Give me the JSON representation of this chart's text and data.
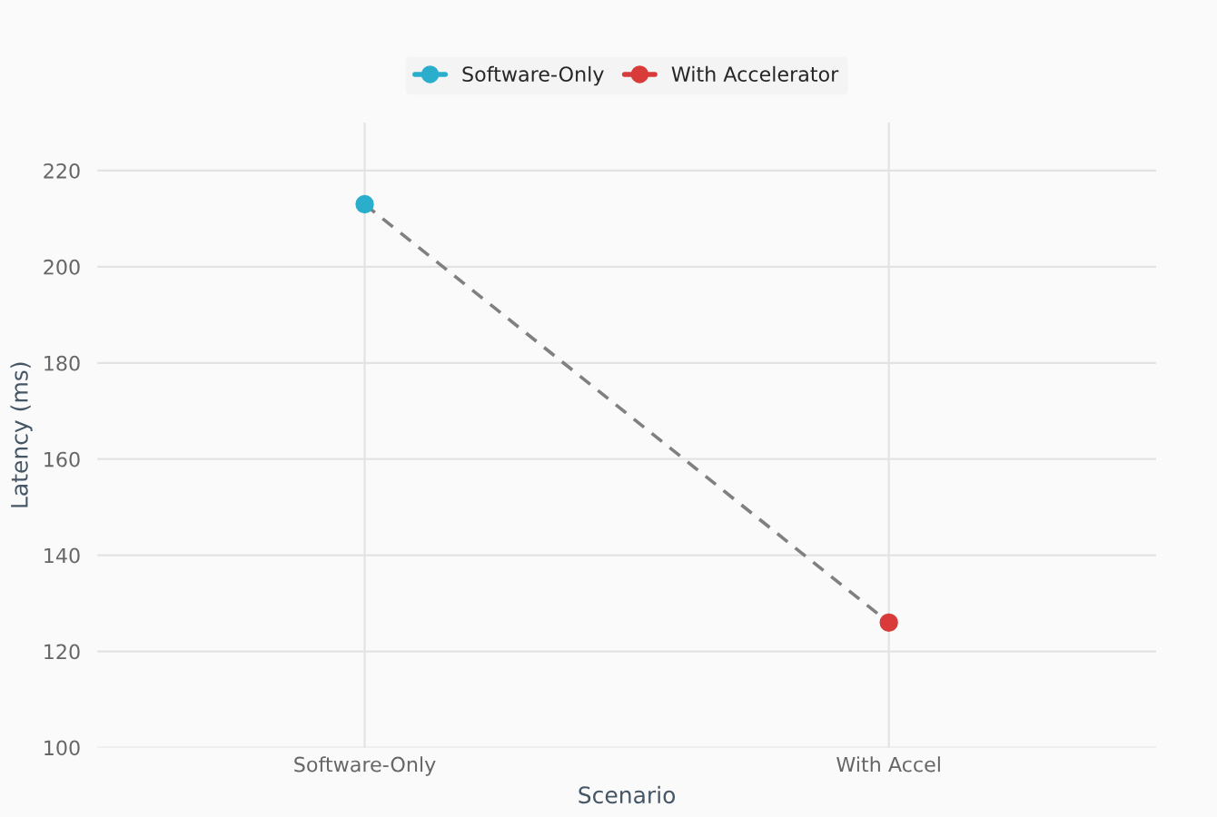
{
  "chart_data": {
    "type": "scatter",
    "xlabel": "Scenario",
    "ylabel": "Latency (ms)",
    "categories": [
      "Software-Only",
      "With Accel"
    ],
    "series": [
      {
        "type": "line",
        "color": "#808080",
        "values": [
          213,
          126
        ],
        "line_style": "dashed",
        "marker": "none"
      },
      {
        "name": "Software-Only",
        "color": "#2aaecb",
        "values": [
          213,
          null
        ],
        "marker": "circle"
      },
      {
        "name": "With Accelerator",
        "color": "#d93a3a",
        "values": [
          null,
          126
        ],
        "marker": "circle"
      }
    ],
    "ylim": [
      100,
      230
    ],
    "yticks": [
      100,
      120,
      140,
      160,
      180,
      200,
      220
    ],
    "grid": true,
    "legend": "top"
  }
}
